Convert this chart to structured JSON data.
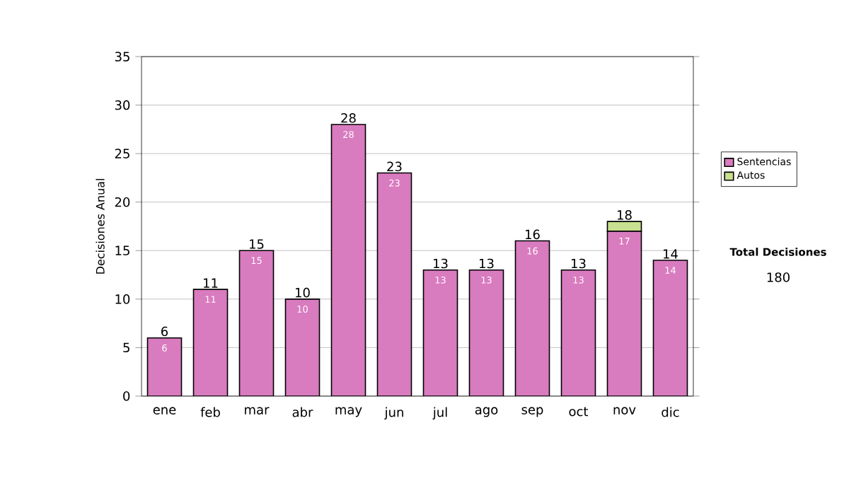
{
  "chart_data": {
    "type": "bar",
    "ylabel": "Decisiones Anual",
    "categories": [
      "ene",
      "feb",
      "mar",
      "abr",
      "may",
      "jun",
      "jul",
      "ago",
      "sep",
      "oct",
      "nov",
      "dic"
    ],
    "stacked": true,
    "series": [
      {
        "name": "Sentencias",
        "color": "#d97bbf",
        "values": [
          6,
          11,
          15,
          10,
          28,
          23,
          13,
          13,
          16,
          13,
          17,
          14
        ],
        "value_labels": [
          "6",
          "11",
          "15",
          "10",
          "28",
          "23",
          "13",
          "13",
          "16",
          "13",
          "17",
          "14"
        ]
      },
      {
        "name": "Autos",
        "color": "#c8e08f",
        "values": [
          0,
          0,
          0,
          0,
          0,
          0,
          0,
          0,
          0,
          0,
          1,
          0
        ]
      }
    ],
    "totals": [
      "6",
      "11",
      "15",
      "10",
      "28",
      "23",
      "13",
      "13",
      "16",
      "13",
      "18",
      "14"
    ],
    "ylim": [
      0,
      35
    ],
    "yticks": [
      0,
      5,
      10,
      15,
      20,
      25,
      30,
      35
    ],
    "grid": "y",
    "legend": "right",
    "annotations": [
      "Total Decisiones",
      "180"
    ]
  }
}
